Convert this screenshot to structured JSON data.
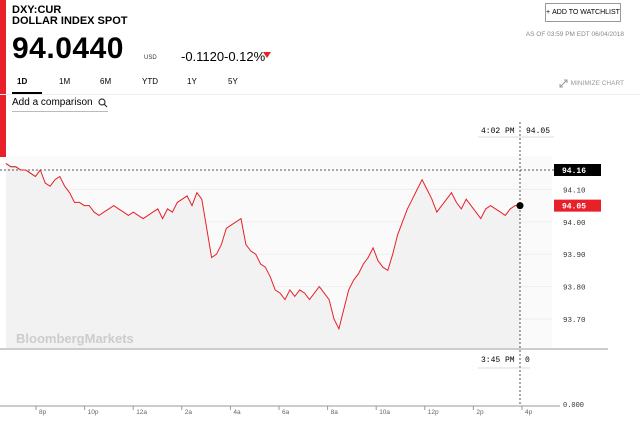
{
  "header": {
    "ticker": "DXY:CUR",
    "name": "DOLLAR INDEX SPOT",
    "price": "94.0440",
    "currency": "USD",
    "change_abs": "-0.1120",
    "change_pct": "-0.12%",
    "timestamp": "AS OF 03:59 PM EDT 06/04/2018",
    "watchlist_label": "ADD TO WATCHLIST"
  },
  "tabs": [
    "1D",
    "1M",
    "6M",
    "YTD",
    "1Y",
    "5Y"
  ],
  "active_tab": "1D",
  "minimize_label": "MINIMIZE CHART",
  "compare_placeholder": "Add a comparison",
  "watermark": "BloombergMarkets",
  "crosshair": {
    "time_label": "4:02 PM",
    "value_label": "94.05",
    "volume_time_label": "3:45 PM",
    "volume_value_label": "0"
  },
  "colors": {
    "accent": "#e8202a",
    "up": "#27ae60",
    "line": "#e8202a",
    "area": "#f2f2f2"
  },
  "chart_data": {
    "type": "line",
    "x_ticks": [
      "8p",
      "10p",
      "12a",
      "2a",
      "4a",
      "6a",
      "8a",
      "10a",
      "12p",
      "2p",
      "4p"
    ],
    "y_ticks": [
      94.1,
      94.0,
      93.9,
      93.8,
      93.7
    ],
    "y_tick_labels": [
      "94.10",
      "94.00",
      "93.90",
      "93.80",
      "93.70"
    ],
    "volume_tick_label": "0.000",
    "ylim": [
      93.63,
      94.2
    ],
    "prev_close": 94.16,
    "prev_close_label": "94.16",
    "last": 94.05,
    "last_label": "94.05",
    "values": [
      94.18,
      94.17,
      94.17,
      94.16,
      94.16,
      94.15,
      94.14,
      94.16,
      94.12,
      94.11,
      94.13,
      94.14,
      94.11,
      94.09,
      94.06,
      94.06,
      94.05,
      94.05,
      94.03,
      94.02,
      94.03,
      94.04,
      94.05,
      94.04,
      94.03,
      94.02,
      94.03,
      94.02,
      94.01,
      94.02,
      94.03,
      94.04,
      94.01,
      94.04,
      94.03,
      94.06,
      94.07,
      94.08,
      94.05,
      94.09,
      94.07,
      93.98,
      93.89,
      93.9,
      93.93,
      93.98,
      93.99,
      94.0,
      94.01,
      93.93,
      93.91,
      93.9,
      93.87,
      93.86,
      93.83,
      93.79,
      93.78,
      93.76,
      93.79,
      93.77,
      93.79,
      93.78,
      93.76,
      93.78,
      93.8,
      93.78,
      93.76,
      93.7,
      93.67,
      93.73,
      93.79,
      93.82,
      93.84,
      93.87,
      93.89,
      93.92,
      93.88,
      93.86,
      93.85,
      93.9,
      93.96,
      94.0,
      94.04,
      94.07,
      94.1,
      94.13,
      94.1,
      94.07,
      94.03,
      94.05,
      94.07,
      94.09,
      94.06,
      94.04,
      94.07,
      94.05,
      94.03,
      94.01,
      94.04,
      94.05,
      94.04,
      94.03,
      94.02,
      94.04,
      94.05,
      94.05
    ]
  }
}
